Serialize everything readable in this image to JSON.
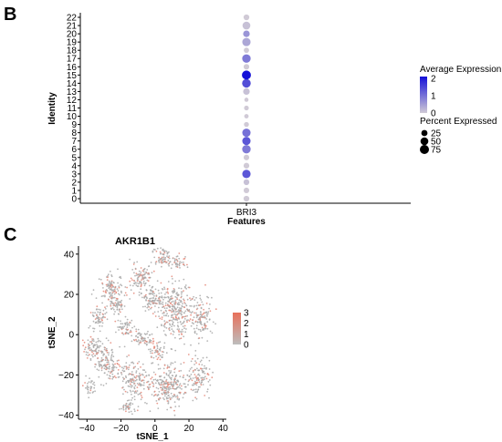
{
  "colors": {
    "dot_low": "#d0cad6",
    "dot_high": "#1410d8",
    "tsne_low": "#bdbdbd",
    "tsne_high": "#e8705a",
    "axis": "#000000"
  },
  "chart_data": [
    {
      "type": "scatter",
      "subtype": "dot-plot",
      "panel": "B",
      "xlabel": "Features",
      "ylabel": "Identity",
      "categories_x": [
        "BRI3"
      ],
      "categories_y": [
        "0",
        "1",
        "2",
        "3",
        "4",
        "5",
        "6",
        "7",
        "8",
        "9",
        "10",
        "11",
        "12",
        "13",
        "14",
        "15",
        "16",
        "17",
        "18",
        "19",
        "20",
        "21",
        "22"
      ],
      "series": [
        {
          "feature": "BRI3",
          "points": [
            {
              "identity": "0",
              "avg_exp": 0.0,
              "pct": 20
            },
            {
              "identity": "1",
              "avg_exp": 0.0,
              "pct": 18
            },
            {
              "identity": "2",
              "avg_exp": 0.1,
              "pct": 20
            },
            {
              "identity": "3",
              "avg_exp": 1.3,
              "pct": 60
            },
            {
              "identity": "4",
              "avg_exp": 0.0,
              "pct": 20
            },
            {
              "identity": "5",
              "avg_exp": 0.0,
              "pct": 18
            },
            {
              "identity": "6",
              "avg_exp": 0.9,
              "pct": 62
            },
            {
              "identity": "7",
              "avg_exp": 1.3,
              "pct": 58
            },
            {
              "identity": "8",
              "avg_exp": 1.0,
              "pct": 58
            },
            {
              "identity": "9",
              "avg_exp": 0.0,
              "pct": 12
            },
            {
              "identity": "10",
              "avg_exp": 0.0,
              "pct": 8
            },
            {
              "identity": "11",
              "avg_exp": 0.0,
              "pct": 10
            },
            {
              "identity": "12",
              "avg_exp": 0.0,
              "pct": 6
            },
            {
              "identity": "13",
              "avg_exp": 0.1,
              "pct": 30
            },
            {
              "identity": "14",
              "avg_exp": 1.4,
              "pct": 65
            },
            {
              "identity": "15",
              "avg_exp": 2.1,
              "pct": 72
            },
            {
              "identity": "16",
              "avg_exp": 0.0,
              "pct": 18
            },
            {
              "identity": "17",
              "avg_exp": 0.9,
              "pct": 62
            },
            {
              "identity": "18",
              "avg_exp": 0.0,
              "pct": 15
            },
            {
              "identity": "19",
              "avg_exp": 0.4,
              "pct": 58
            },
            {
              "identity": "20",
              "avg_exp": 0.6,
              "pct": 30
            },
            {
              "identity": "21",
              "avg_exp": 0.1,
              "pct": 50
            },
            {
              "identity": "22",
              "avg_exp": 0.0,
              "pct": 20
            }
          ]
        }
      ],
      "legend": {
        "color_title": "Average Expression",
        "color_ticks": [
          "2",
          "1",
          "0"
        ],
        "color_values": [
          2,
          1,
          0
        ],
        "size_title": "Percent Expressed",
        "size_ticks": [
          "25",
          "50",
          "75"
        ],
        "size_values": [
          25,
          50,
          75
        ],
        "placement": "right"
      }
    },
    {
      "type": "scatter",
      "subtype": "tsne-feature-plot",
      "panel": "C",
      "title": "AKR1B1",
      "xlabel": "tSNE_1",
      "ylabel": "tSNE_2",
      "xlim": [
        -45,
        42
      ],
      "ylim": [
        -42,
        44
      ],
      "xticks": [
        "−40",
        "−20",
        "0",
        "20",
        "40"
      ],
      "xtick_values": [
        -40,
        -20,
        0,
        20,
        40
      ],
      "yticks": [
        "40",
        "20",
        "0",
        "−20",
        "−40"
      ],
      "ytick_values": [
        40,
        20,
        0,
        -20,
        -40
      ],
      "legend": {
        "ticks": [
          "3",
          "2",
          "1",
          "0"
        ],
        "values": [
          3,
          2,
          1,
          0
        ],
        "placement": "right"
      }
    }
  ]
}
